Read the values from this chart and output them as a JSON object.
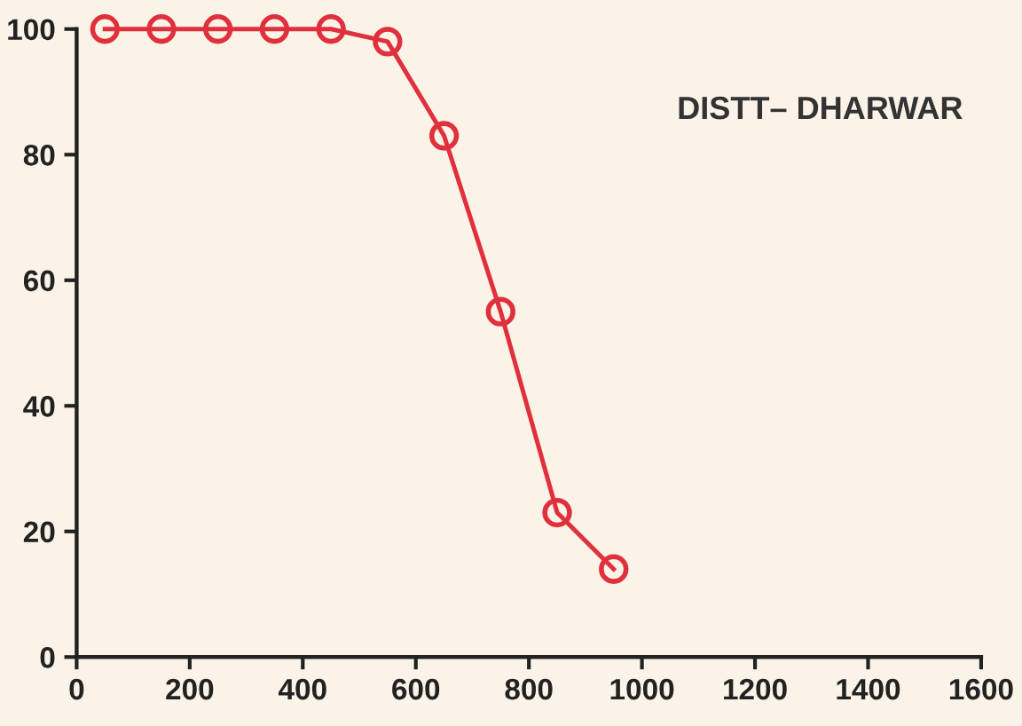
{
  "chart_data": {
    "type": "line",
    "x": [
      50,
      150,
      250,
      350,
      450,
      550,
      650,
      750,
      850,
      950
    ],
    "series": [
      {
        "color": "#e0303c",
        "values": [
          100,
          100,
          100,
          100,
          100,
          98,
          83,
          55,
          23,
          14
        ]
      }
    ],
    "marker": "circle",
    "line_style": "solid",
    "xlim": [
      0,
      1600
    ],
    "xticks": [
      0,
      200,
      400,
      600,
      800,
      1000,
      1200,
      1400,
      1600
    ],
    "ylim": [
      0,
      100
    ],
    "yticks": [
      0,
      20,
      40,
      60,
      80,
      100
    ],
    "annotations": [
      "DISTT– DHARWAR"
    ],
    "grid": false,
    "legend": false
  }
}
